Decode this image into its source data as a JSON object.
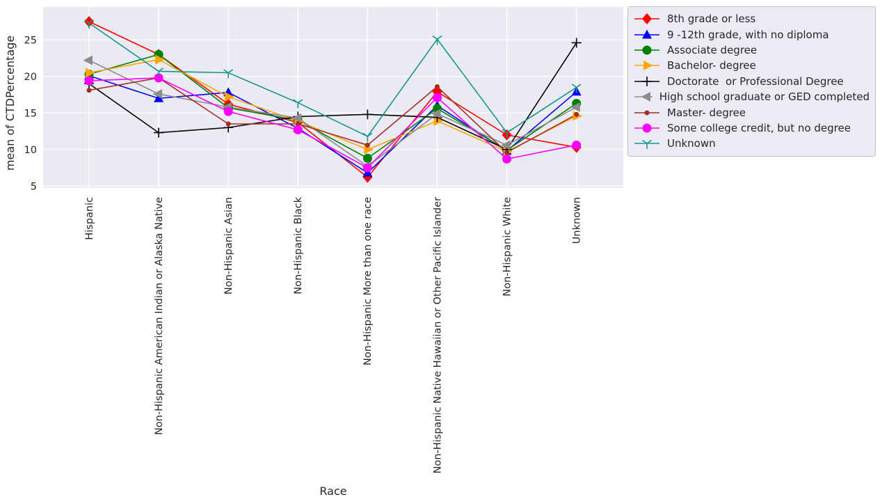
{
  "figure": {
    "background": "#ffffff",
    "plot_background": "#eaeaf2",
    "grid_color": "#ffffff",
    "tick_color": "#262626"
  },
  "chart_data": {
    "type": "line",
    "title": "",
    "xlabel": "Race",
    "ylabel": "mean of CTDPercentage",
    "ylim": [
      4.5,
      29.5
    ],
    "yticks": [
      5,
      10,
      15,
      20,
      25
    ],
    "grid": true,
    "legend_position": "outside-top-right",
    "categories": [
      "Hispanic",
      "Non-Hispanic American Indian or Alaska Native",
      "Non-Hispanic Asian",
      "Non-Hispanic Black",
      "Non-Hispanic More than one race",
      "Non-Hispanic Native Hawaiian or Other Pacific Islander",
      "Non-Hispanic White",
      "Unknown"
    ],
    "series": [
      {
        "name": "8th grade or less",
        "color": "#ff0000",
        "marker": "diamond",
        "values": [
          27.5,
          23.0,
          16.2,
          13.7,
          6.2,
          17.9,
          12.0,
          10.3
        ]
      },
      {
        "name": "9 -12th grade, with no diploma",
        "color": "#0000ff",
        "marker": "triangle-up",
        "values": [
          20.1,
          17.0,
          17.8,
          12.9,
          6.8,
          16.0,
          9.8,
          17.9
        ]
      },
      {
        "name": "Associate degree",
        "color": "#008000",
        "marker": "circle",
        "values": [
          20.3,
          23.0,
          15.7,
          14.0,
          8.8,
          15.6,
          9.9,
          16.3
        ]
      },
      {
        "name": "Bachelor- degree",
        "color": "#ffa500",
        "marker": "triangle-right",
        "values": [
          20.5,
          22.3,
          17.2,
          13.9,
          10.0,
          13.9,
          9.7,
          14.6
        ]
      },
      {
        "name": "Doctorate  or Professional Degree",
        "color": "#000000",
        "marker": "plus",
        "values": [
          19.0,
          12.3,
          13.0,
          14.5,
          14.8,
          14.4,
          10.0,
          24.6
        ]
      },
      {
        "name": "High school graduate or GED completed",
        "color": "#8c8c8c",
        "marker": "triangle-left",
        "values": [
          22.2,
          17.6,
          15.8,
          14.3,
          7.7,
          14.9,
          10.6,
          15.8
        ]
      },
      {
        "name": "Master- degree",
        "color": "#a52a2a",
        "marker": "dot",
        "values": [
          18.1,
          19.8,
          13.5,
          13.5,
          10.6,
          18.6,
          9.6,
          14.8
        ]
      },
      {
        "name": "Some college credit, but no degree",
        "color": "#ff00ff",
        "marker": "circle",
        "values": [
          19.4,
          19.8,
          15.2,
          12.7,
          7.5,
          17.1,
          8.7,
          10.6
        ]
      },
      {
        "name": "Unknown",
        "color": "#15968c",
        "marker": "tri-down",
        "values": [
          27.3,
          20.7,
          20.5,
          16.4,
          11.8,
          25.1,
          12.3,
          18.5
        ]
      }
    ]
  }
}
